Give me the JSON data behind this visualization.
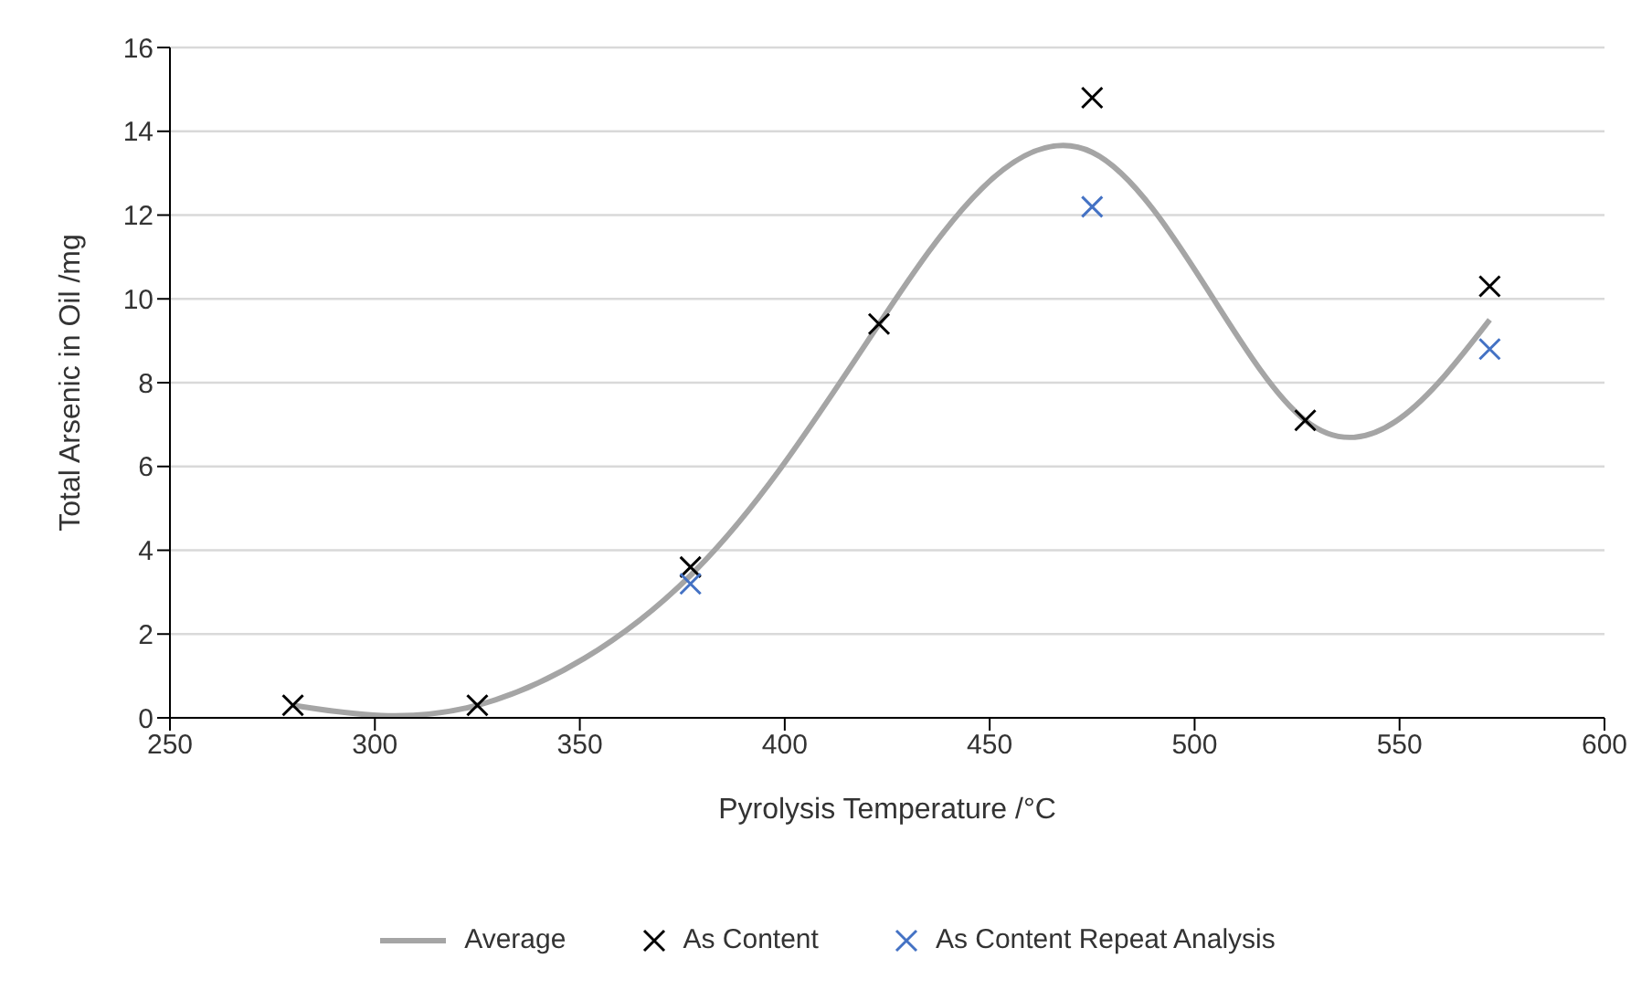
{
  "chart_data": {
    "type": "scatter",
    "xlabel": "Pyrolysis Temperature /°C",
    "ylabel": "Total Arsenic in Oil /mg",
    "xlim": [
      250,
      600
    ],
    "xticks": [
      250,
      300,
      350,
      400,
      450,
      500,
      550,
      600
    ],
    "ylim": [
      0,
      16
    ],
    "yticks": [
      0,
      2,
      4,
      6,
      8,
      10,
      12,
      14,
      16
    ],
    "grid": "y",
    "legend": "bottom",
    "series": [
      {
        "name": "Average",
        "type": "line",
        "marker": "none",
        "line_style": "solid",
        "color": "#a5a5a5",
        "x": [
          280,
          325,
          377,
          423,
          475,
          527,
          572
        ],
        "values": [
          0.3,
          0.3,
          3.4,
          9.4,
          13.5,
          7.1,
          9.5
        ]
      },
      {
        "name": "As Content",
        "marker": "cross",
        "color": "#000000",
        "x": [
          280,
          325,
          377,
          423,
          475,
          527,
          572
        ],
        "values": [
          0.3,
          0.3,
          3.6,
          9.4,
          14.8,
          7.1,
          10.3
        ]
      },
      {
        "name": "As Content Repeat Analysis",
        "marker": "cross",
        "color": "#4472c4",
        "x": [
          377,
          475,
          572
        ],
        "values": [
          3.2,
          12.2,
          8.8
        ]
      }
    ]
  }
}
